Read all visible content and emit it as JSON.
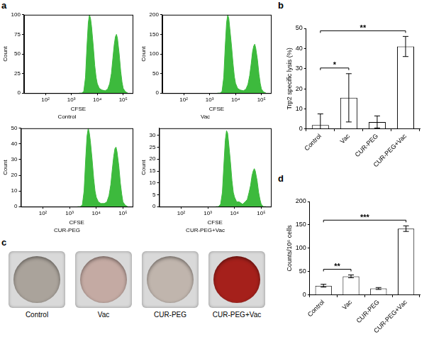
{
  "chart_data": [
    {
      "panel": "a",
      "type": "area",
      "title": "Control",
      "x_label": "CFSE",
      "y_label": "Count",
      "log": "x",
      "grid": false,
      "color": "#3dba3d",
      "x": [
        2000,
        2500,
        3000,
        3500,
        4000,
        4500,
        5000,
        5500,
        6000,
        7000,
        8000,
        9000,
        10000,
        12000,
        15000,
        20000,
        25000,
        30000,
        35000,
        40000,
        45000,
        50000,
        55000,
        60000,
        70000,
        80000,
        90000,
        100000,
        120000,
        150000
      ],
      "values": [
        0,
        0,
        2,
        20,
        60,
        90,
        100,
        95,
        85,
        60,
        35,
        20,
        12,
        6,
        4,
        3,
        5,
        12,
        25,
        45,
        62,
        72,
        75,
        70,
        50,
        28,
        14,
        6,
        2,
        0
      ],
      "xlim": [
        15,
        230000
      ],
      "xticks": [
        {
          "value": 100,
          "label": "10²"
        },
        {
          "value": 1000,
          "label": "10³"
        },
        {
          "value": 10000,
          "label": "10⁴"
        },
        {
          "value": 100000,
          "label": "10⁵"
        }
      ],
      "ylim": [
        0,
        100
      ],
      "yticks": [
        0,
        25,
        50,
        75,
        100
      ]
    },
    {
      "type": "area",
      "title": "Vac",
      "x_label": "CFSE",
      "y_label": "Count",
      "log": "x",
      "grid": false,
      "color": "#3dba3d",
      "x": [
        2000,
        2500,
        3000,
        3500,
        4000,
        4500,
        5000,
        5500,
        6000,
        7000,
        8000,
        9000,
        10000,
        12000,
        15000,
        20000,
        25000,
        30000,
        35000,
        40000,
        45000,
        50000,
        55000,
        60000,
        70000,
        80000,
        90000,
        100000,
        120000,
        150000
      ],
      "values": [
        0,
        0,
        4,
        40,
        120,
        180,
        200,
        190,
        165,
        120,
        75,
        42,
        25,
        12,
        8,
        6,
        10,
        22,
        45,
        75,
        105,
        120,
        125,
        115,
        85,
        48,
        24,
        10,
        3,
        0
      ],
      "xlim": [
        15,
        230000
      ],
      "xticks": [
        {
          "value": 100,
          "label": "10²"
        },
        {
          "value": 1000,
          "label": "10³"
        },
        {
          "value": 10000,
          "label": "10⁴"
        },
        {
          "value": 100000,
          "label": "10⁵"
        }
      ],
      "ylim": [
        0,
        200
      ],
      "yticks": [
        0,
        50,
        100,
        150,
        200
      ]
    },
    {
      "type": "area",
      "title": "CUR-PEG",
      "x_label": "CFSE",
      "y_label": "Count",
      "log": "x",
      "grid": false,
      "color": "#3dba3d",
      "x": [
        2000,
        2500,
        3000,
        3500,
        4000,
        4500,
        5000,
        5500,
        6000,
        7000,
        8000,
        9000,
        10000,
        12000,
        15000,
        20000,
        25000,
        30000,
        35000,
        40000,
        45000,
        50000,
        55000,
        60000,
        70000,
        80000,
        90000,
        100000,
        120000,
        150000
      ],
      "values": [
        0,
        0,
        1,
        10,
        30,
        45,
        50,
        47,
        42,
        30,
        18,
        10,
        6,
        3,
        2,
        2,
        3,
        7,
        14,
        24,
        32,
        37,
        38,
        35,
        26,
        15,
        8,
        3,
        1,
        0
      ],
      "xlim": [
        15,
        230000
      ],
      "xticks": [
        {
          "value": 100,
          "label": "10²"
        },
        {
          "value": 1000,
          "label": "10³"
        },
        {
          "value": 10000,
          "label": "10⁴"
        },
        {
          "value": 100000,
          "label": "10⁵"
        }
      ],
      "ylim": [
        0,
        50
      ],
      "yticks": [
        0,
        10,
        20,
        30,
        40,
        50
      ]
    },
    {
      "type": "area",
      "title": "CUR-PEG+Vac",
      "x_label": "CFSE",
      "y_label": "Count",
      "log": "x",
      "grid": false,
      "color": "#3dba3d",
      "x": [
        2000,
        2500,
        3000,
        3500,
        4000,
        4500,
        5000,
        5500,
        6000,
        7000,
        8000,
        9000,
        10000,
        12000,
        15000,
        20000,
        25000,
        30000,
        35000,
        40000,
        45000,
        50000,
        55000,
        60000,
        70000,
        80000,
        90000,
        100000,
        120000,
        150000
      ],
      "values": [
        0,
        0,
        1,
        6,
        18,
        28,
        32,
        31,
        27,
        19,
        11,
        6,
        4,
        2,
        2,
        1,
        2,
        3,
        6,
        9,
        13,
        15,
        16,
        15,
        11,
        6,
        3,
        1,
        0,
        0
      ],
      "xlim": [
        15,
        230000
      ],
      "xticks": [
        {
          "value": 100,
          "label": "10²"
        },
        {
          "value": 1000,
          "label": "10³"
        },
        {
          "value": 10000,
          "label": "10⁴"
        },
        {
          "value": 100000,
          "label": "10⁵"
        }
      ],
      "ylim": [
        0,
        33
      ],
      "yticks": [
        0,
        5,
        10,
        15,
        20,
        25,
        30
      ]
    },
    {
      "panel": "b",
      "type": "bar",
      "y_label": "Trp2 specific lysis (%)",
      "grid": false,
      "color": "#ffffff",
      "categories": [
        "Control",
        "Vac",
        "CUR-PEG",
        "CUR-PEG+Vac"
      ],
      "values": [
        2,
        15.5,
        3.5,
        41
      ],
      "errors": [
        5.5,
        12,
        3,
        5
      ],
      "ylim": [
        0,
        50
      ],
      "yticks": [
        0,
        10,
        20,
        30,
        40,
        50
      ],
      "annotations": [
        {
          "text": "*",
          "from": "Control",
          "to": "Vac"
        },
        {
          "text": "**",
          "from": "Control",
          "to": "CUR-PEG+Vac"
        }
      ]
    },
    {
      "panel": "d",
      "type": "bar",
      "y_label": "Counts/10⁶ cells",
      "grid": false,
      "color": "#ffffff",
      "categories": [
        "Control",
        "Vac",
        "CUR-PEG",
        "CUR-PEG+Vac"
      ],
      "values": [
        20,
        40,
        14,
        142
      ],
      "errors": [
        3,
        3,
        2,
        6
      ],
      "ylim": [
        0,
        200
      ],
      "yticks": [
        0,
        50,
        100,
        150,
        200
      ],
      "annotations": [
        {
          "text": "**",
          "from": "Control",
          "to": "Vac"
        },
        {
          "text": "***",
          "from": "Control",
          "to": "CUR-PEG+Vac"
        }
      ]
    }
  ],
  "images": {
    "panel": "c",
    "wells": [
      {
        "label": "Control",
        "color": "#aaa39b"
      },
      {
        "label": "Vac",
        "color": "#c4aaa3"
      },
      {
        "label": "CUR-PEG",
        "color": "#c0b5ad"
      },
      {
        "label": "CUR-PEG+Vac",
        "color": "#a5201b"
      }
    ]
  }
}
